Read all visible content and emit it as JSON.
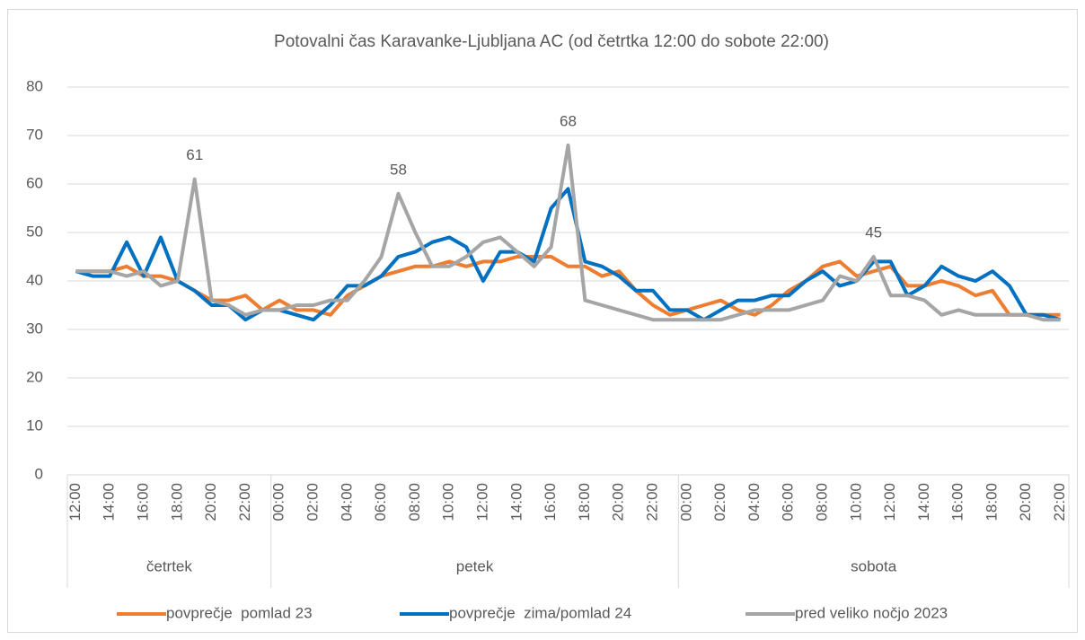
{
  "chart_data": {
    "type": "line",
    "title": "Potovalni čas Karavanke-Ljubljana AC (od četrtka 12:00 do sobote 22:00)",
    "categories": [
      "12:00",
      null,
      "14:00",
      null,
      "16:00",
      null,
      "18:00",
      null,
      "20:00",
      null,
      "22:00",
      null,
      "00:00",
      null,
      "02:00",
      null,
      "04:00",
      null,
      "06:00",
      null,
      "08:00",
      null,
      "10:00",
      null,
      "12:00",
      null,
      "14:00",
      null,
      "16:00",
      null,
      "18:00",
      null,
      "20:00",
      null,
      "22:00",
      null,
      "00:00",
      null,
      "02:00",
      null,
      "04:00",
      null,
      "06:00",
      null,
      "08:00",
      null,
      "10:00",
      null,
      "12:00",
      null,
      "14:00",
      null,
      "16:00",
      null,
      "18:00",
      null,
      "20:00",
      null,
      "22:00"
    ],
    "groups": [
      {
        "name": "četrtek",
        "count": 12
      },
      {
        "name": "petek",
        "count": 24
      },
      {
        "name": "sobota",
        "count": 23
      }
    ],
    "series": [
      {
        "name": "povprečje  pomlad 23",
        "color": "#ed7d31",
        "values": [
          42,
          42,
          42,
          43,
          41,
          41,
          40,
          38,
          36,
          36,
          37,
          34,
          36,
          34,
          34,
          33,
          37,
          39,
          41,
          42,
          43,
          43,
          44,
          43,
          44,
          44,
          45,
          45,
          45,
          43,
          43,
          41,
          42,
          38,
          35,
          33,
          34,
          35,
          36,
          34,
          33,
          35,
          38,
          40,
          43,
          44,
          41,
          42,
          43,
          39,
          39,
          40,
          39,
          37,
          38,
          33,
          33,
          33,
          33
        ]
      },
      {
        "name": "povprečje  zima/pomlad 24",
        "color": "#0070c0",
        "values": [
          42,
          41,
          41,
          48,
          41,
          49,
          40,
          38,
          35,
          35,
          32,
          34,
          34,
          33,
          32,
          35,
          39,
          39,
          41,
          45,
          46,
          48,
          49,
          47,
          40,
          46,
          46,
          44,
          55,
          59,
          44,
          43,
          41,
          38,
          38,
          34,
          34,
          32,
          34,
          36,
          36,
          37,
          37,
          40,
          42,
          39,
          40,
          44,
          44,
          37,
          39,
          43,
          41,
          40,
          42,
          39,
          33,
          33,
          32
        ]
      },
      {
        "name": "pred veliko nočjo 2023",
        "color": "#a5a5a5",
        "values": [
          42,
          42,
          42,
          41,
          42,
          39,
          40,
          61,
          36,
          35,
          33,
          34,
          34,
          35,
          35,
          36,
          36,
          40,
          45,
          58,
          50,
          43,
          43,
          45,
          48,
          49,
          46,
          43,
          47,
          68,
          36,
          35,
          34,
          33,
          32,
          32,
          32,
          32,
          32,
          33,
          34,
          34,
          34,
          35,
          36,
          41,
          40,
          45,
          37,
          37,
          36,
          33,
          34,
          33,
          33,
          33,
          33,
          32,
          32
        ],
        "value_labels": [
          null,
          null,
          null,
          null,
          null,
          null,
          null,
          "61",
          null,
          null,
          null,
          null,
          null,
          null,
          null,
          null,
          null,
          null,
          null,
          "58",
          null,
          null,
          null,
          null,
          null,
          null,
          null,
          null,
          null,
          "68",
          null,
          null,
          null,
          null,
          null,
          null,
          null,
          null,
          null,
          null,
          null,
          null,
          null,
          null,
          null,
          null,
          null,
          "45",
          null,
          null,
          null,
          null,
          null,
          null,
          null,
          null,
          null,
          null,
          null
        ]
      }
    ],
    "ylim": [
      0,
      80
    ],
    "yticks": [
      0,
      10,
      20,
      30,
      40,
      50,
      60,
      70,
      80
    ],
    "grid": true,
    "legend": "bottom"
  }
}
